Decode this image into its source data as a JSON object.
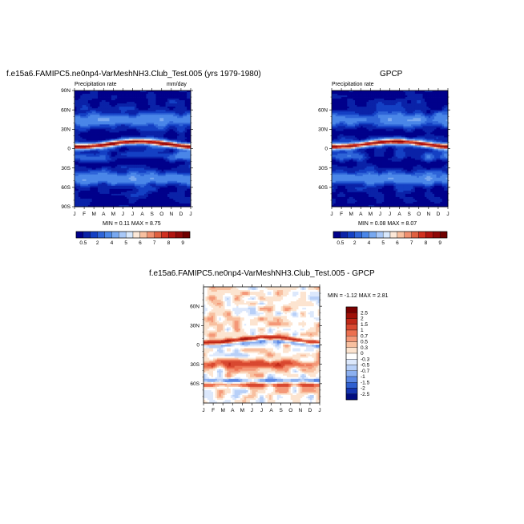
{
  "chart_data": [
    {
      "type": "heatmap",
      "title": "f.e15a6.FAMIPC5.ne0np4-VarMeshNH3.Club_Test.005 (yrs 1979-1980)",
      "left_label": "Precipitation rate",
      "right_label": "mm/day",
      "x_ticks": [
        "J",
        "F",
        "M",
        "A",
        "M",
        "J",
        "J",
        "A",
        "S",
        "O",
        "N",
        "D",
        "J"
      ],
      "y_ticks": [
        "90N",
        "60N",
        "30N",
        "0",
        "30S",
        "60S",
        "90S"
      ],
      "ylim": [
        -90,
        90
      ],
      "stats": "MIN =   0.11 MAX =   8.75",
      "colorbar_labels": [
        "0.5",
        "2",
        "4",
        "5",
        "6",
        "7",
        "8",
        "9"
      ],
      "colorbar_colors": [
        "#00008b",
        "#0a22a8",
        "#1440c4",
        "#2e64d8",
        "#4a86e8",
        "#78a8f0",
        "#a8c8f8",
        "#d8e8fc",
        "#fce8d8",
        "#f8c0a0",
        "#f09070",
        "#e06040",
        "#d03020",
        "#b01410",
        "#900808",
        "#700000"
      ]
    },
    {
      "type": "heatmap",
      "title": "GPCP",
      "left_label": "Precipitation rate",
      "x_ticks": [
        "J",
        "F",
        "M",
        "A",
        "M",
        "J",
        "J",
        "A",
        "S",
        "O",
        "N",
        "D",
        "J"
      ],
      "y_ticks": [
        "60N",
        "30N",
        "0",
        "30S",
        "60S"
      ],
      "ylim": [
        -90,
        90
      ],
      "stats": "MIN =   0.08 MAX =   8.07",
      "colorbar_labels": [
        "0.5",
        "2",
        "4",
        "5",
        "6",
        "7",
        "8",
        "9"
      ]
    },
    {
      "type": "heatmap",
      "title": "f.e15a6.FAMIPC5.ne0np4-VarMeshNH3.Club_Test.005 - GPCP",
      "x_ticks": [
        "J",
        "F",
        "M",
        "A",
        "M",
        "J",
        "J",
        "A",
        "S",
        "O",
        "N",
        "D",
        "J"
      ],
      "y_ticks": [
        "60N",
        "30N",
        "0",
        "30S",
        "60S"
      ],
      "ylim": [
        -90,
        90
      ],
      "stats": "MIN =  -1.12 MAX =   2.81",
      "colorbar_labels": [
        "2.5",
        "2",
        "1.5",
        "1",
        "0.7",
        "0.5",
        "0.3",
        "0",
        "-0.3",
        "-0.5",
        "-0.7",
        "-1",
        "-1.5",
        "-2",
        "-2.5"
      ],
      "colorbar_colors": [
        "#7a0000",
        "#a01008",
        "#c02818",
        "#d84830",
        "#ec7050",
        "#f49878",
        "#f8c0a0",
        "#fce4d0",
        "#ffffff",
        "#dce8fc",
        "#b8d0f8",
        "#8cb0f0",
        "#5c88e4",
        "#3060d0",
        "#1434b0",
        "#000c80"
      ]
    }
  ]
}
